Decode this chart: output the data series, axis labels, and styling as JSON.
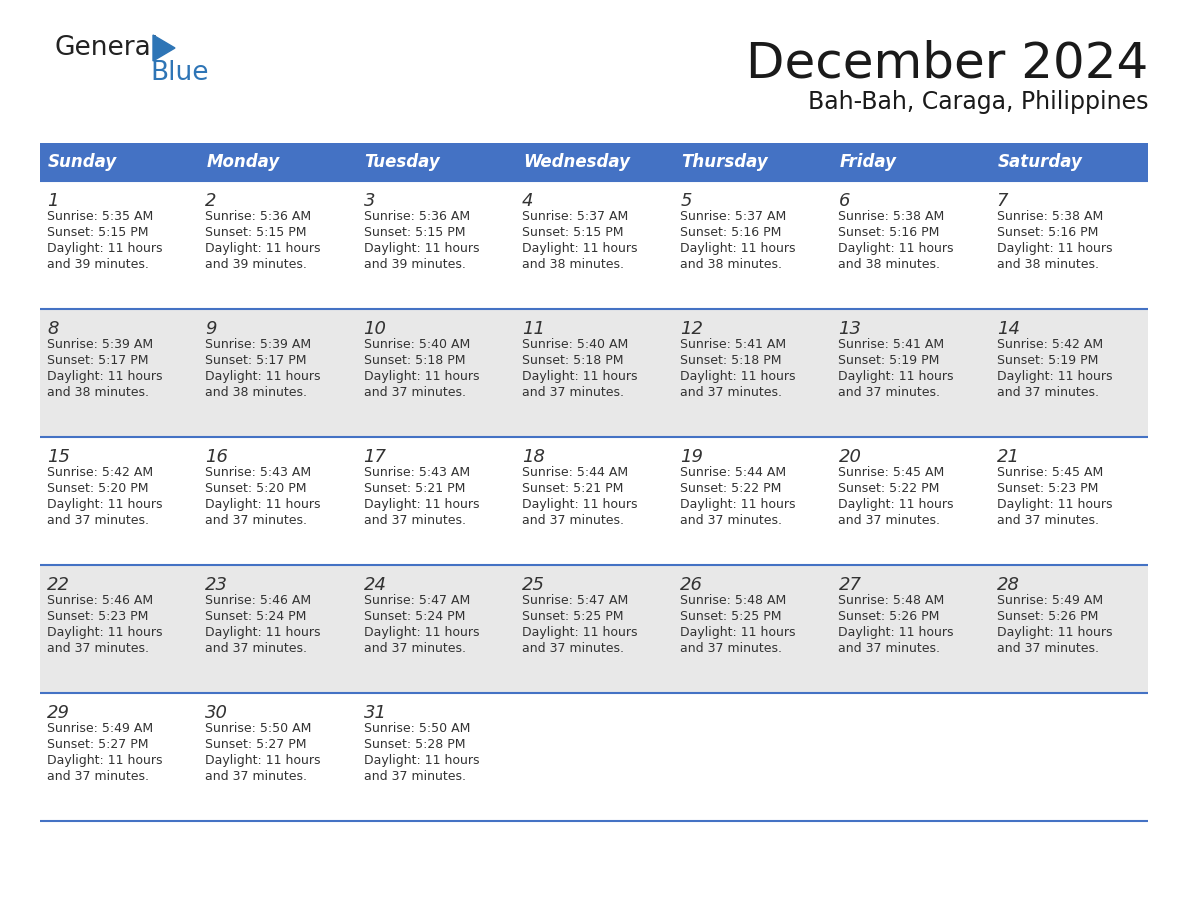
{
  "title": "December 2024",
  "subtitle": "Bah-Bah, Caraga, Philippines",
  "days_of_week": [
    "Sunday",
    "Monday",
    "Tuesday",
    "Wednesday",
    "Thursday",
    "Friday",
    "Saturday"
  ],
  "header_bg": "#4472C4",
  "header_text": "#FFFFFF",
  "row_bg_even": "#FFFFFF",
  "row_bg_odd": "#E8E8E8",
  "cell_text_color": "#333333",
  "day_num_color": "#333333",
  "grid_line_color": "#4472C4",
  "logo_general_color": "#222222",
  "logo_blue_color": "#2E75B6",
  "title_fontsize": 36,
  "subtitle_fontsize": 17,
  "header_fontsize": 12,
  "day_num_fontsize": 13,
  "cell_text_fontsize": 9,
  "calendar_data": [
    [
      {
        "day": 1,
        "sunrise": "5:35 AM",
        "sunset": "5:15 PM",
        "daylight_hours": 11,
        "daylight_minutes": 39
      },
      {
        "day": 2,
        "sunrise": "5:36 AM",
        "sunset": "5:15 PM",
        "daylight_hours": 11,
        "daylight_minutes": 39
      },
      {
        "day": 3,
        "sunrise": "5:36 AM",
        "sunset": "5:15 PM",
        "daylight_hours": 11,
        "daylight_minutes": 39
      },
      {
        "day": 4,
        "sunrise": "5:37 AM",
        "sunset": "5:15 PM",
        "daylight_hours": 11,
        "daylight_minutes": 38
      },
      {
        "day": 5,
        "sunrise": "5:37 AM",
        "sunset": "5:16 PM",
        "daylight_hours": 11,
        "daylight_minutes": 38
      },
      {
        "day": 6,
        "sunrise": "5:38 AM",
        "sunset": "5:16 PM",
        "daylight_hours": 11,
        "daylight_minutes": 38
      },
      {
        "day": 7,
        "sunrise": "5:38 AM",
        "sunset": "5:16 PM",
        "daylight_hours": 11,
        "daylight_minutes": 38
      }
    ],
    [
      {
        "day": 8,
        "sunrise": "5:39 AM",
        "sunset": "5:17 PM",
        "daylight_hours": 11,
        "daylight_minutes": 38
      },
      {
        "day": 9,
        "sunrise": "5:39 AM",
        "sunset": "5:17 PM",
        "daylight_hours": 11,
        "daylight_minutes": 38
      },
      {
        "day": 10,
        "sunrise": "5:40 AM",
        "sunset": "5:18 PM",
        "daylight_hours": 11,
        "daylight_minutes": 37
      },
      {
        "day": 11,
        "sunrise": "5:40 AM",
        "sunset": "5:18 PM",
        "daylight_hours": 11,
        "daylight_minutes": 37
      },
      {
        "day": 12,
        "sunrise": "5:41 AM",
        "sunset": "5:18 PM",
        "daylight_hours": 11,
        "daylight_minutes": 37
      },
      {
        "day": 13,
        "sunrise": "5:41 AM",
        "sunset": "5:19 PM",
        "daylight_hours": 11,
        "daylight_minutes": 37
      },
      {
        "day": 14,
        "sunrise": "5:42 AM",
        "sunset": "5:19 PM",
        "daylight_hours": 11,
        "daylight_minutes": 37
      }
    ],
    [
      {
        "day": 15,
        "sunrise": "5:42 AM",
        "sunset": "5:20 PM",
        "daylight_hours": 11,
        "daylight_minutes": 37
      },
      {
        "day": 16,
        "sunrise": "5:43 AM",
        "sunset": "5:20 PM",
        "daylight_hours": 11,
        "daylight_minutes": 37
      },
      {
        "day": 17,
        "sunrise": "5:43 AM",
        "sunset": "5:21 PM",
        "daylight_hours": 11,
        "daylight_minutes": 37
      },
      {
        "day": 18,
        "sunrise": "5:44 AM",
        "sunset": "5:21 PM",
        "daylight_hours": 11,
        "daylight_minutes": 37
      },
      {
        "day": 19,
        "sunrise": "5:44 AM",
        "sunset": "5:22 PM",
        "daylight_hours": 11,
        "daylight_minutes": 37
      },
      {
        "day": 20,
        "sunrise": "5:45 AM",
        "sunset": "5:22 PM",
        "daylight_hours": 11,
        "daylight_minutes": 37
      },
      {
        "day": 21,
        "sunrise": "5:45 AM",
        "sunset": "5:23 PM",
        "daylight_hours": 11,
        "daylight_minutes": 37
      }
    ],
    [
      {
        "day": 22,
        "sunrise": "5:46 AM",
        "sunset": "5:23 PM",
        "daylight_hours": 11,
        "daylight_minutes": 37
      },
      {
        "day": 23,
        "sunrise": "5:46 AM",
        "sunset": "5:24 PM",
        "daylight_hours": 11,
        "daylight_minutes": 37
      },
      {
        "day": 24,
        "sunrise": "5:47 AM",
        "sunset": "5:24 PM",
        "daylight_hours": 11,
        "daylight_minutes": 37
      },
      {
        "day": 25,
        "sunrise": "5:47 AM",
        "sunset": "5:25 PM",
        "daylight_hours": 11,
        "daylight_minutes": 37
      },
      {
        "day": 26,
        "sunrise": "5:48 AM",
        "sunset": "5:25 PM",
        "daylight_hours": 11,
        "daylight_minutes": 37
      },
      {
        "day": 27,
        "sunrise": "5:48 AM",
        "sunset": "5:26 PM",
        "daylight_hours": 11,
        "daylight_minutes": 37
      },
      {
        "day": 28,
        "sunrise": "5:49 AM",
        "sunset": "5:26 PM",
        "daylight_hours": 11,
        "daylight_minutes": 37
      }
    ],
    [
      {
        "day": 29,
        "sunrise": "5:49 AM",
        "sunset": "5:27 PM",
        "daylight_hours": 11,
        "daylight_minutes": 37
      },
      {
        "day": 30,
        "sunrise": "5:50 AM",
        "sunset": "5:27 PM",
        "daylight_hours": 11,
        "daylight_minutes": 37
      },
      {
        "day": 31,
        "sunrise": "5:50 AM",
        "sunset": "5:28 PM",
        "daylight_hours": 11,
        "daylight_minutes": 37
      },
      null,
      null,
      null,
      null
    ]
  ]
}
